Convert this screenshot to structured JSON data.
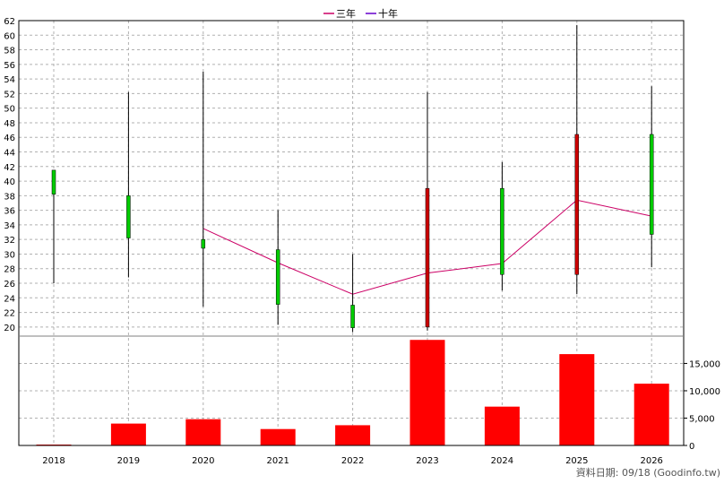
{
  "chart_data": {
    "type": "candlestick+line+bar",
    "categories": [
      "2018",
      "2019",
      "2020",
      "2021",
      "2022",
      "2023",
      "2024",
      "2025",
      "2026"
    ],
    "price_axis": {
      "min": 19,
      "max": 62,
      "ticks": [
        20,
        22,
        24,
        26,
        28,
        30,
        32,
        34,
        36,
        38,
        40,
        42,
        44,
        46,
        48,
        50,
        52,
        54,
        56,
        58,
        60,
        62
      ]
    },
    "candles": [
      {
        "year": "2018",
        "open": 38.2,
        "close": 41.5,
        "high": 41.5,
        "low": 26.0,
        "color": "#00cc00"
      },
      {
        "year": "2019",
        "open": 32.2,
        "close": 38.0,
        "high": 52.2,
        "low": 26.8,
        "color": "#00cc00"
      },
      {
        "year": "2020",
        "open": 30.8,
        "close": 32.0,
        "high": 55.0,
        "low": 22.8,
        "color": "#00cc00"
      },
      {
        "year": "2021",
        "open": 23.1,
        "close": 30.6,
        "high": 36.0,
        "low": 20.3,
        "color": "#00cc00"
      },
      {
        "year": "2022",
        "open": 19.9,
        "close": 23.0,
        "high": 30.0,
        "low": 19.3,
        "color": "#00cc00"
      },
      {
        "year": "2023",
        "open": 20.0,
        "close": 39.0,
        "high": 52.2,
        "low": 19.5,
        "color": "#cc0000"
      },
      {
        "year": "2024",
        "open": 27.2,
        "close": 39.0,
        "high": 42.6,
        "low": 25.0,
        "color": "#00cc00"
      },
      {
        "year": "2025",
        "open": 27.2,
        "close": 46.4,
        "high": 61.4,
        "low": 24.5,
        "color": "#cc0000"
      },
      {
        "year": "2026",
        "open": 32.7,
        "close": 46.4,
        "high": 53.0,
        "low": 28.2,
        "color": "#00cc00"
      }
    ],
    "series": [
      {
        "name": "三年",
        "color": "#cc0066",
        "values": [
          null,
          null,
          33.5,
          28.8,
          24.5,
          27.4,
          28.7,
          37.4,
          35.2
        ]
      },
      {
        "name": "十年",
        "color": "#6600cc",
        "values": [
          null,
          null,
          null,
          null,
          null,
          null,
          null,
          null,
          null
        ]
      }
    ],
    "volume": {
      "values": [
        0,
        4000,
        4800,
        3000,
        3700,
        19300,
        7100,
        16700,
        11300
      ],
      "color": "#ff0000",
      "max": 19500,
      "ticks": [
        0,
        5000,
        10000,
        15000
      ],
      "tick_labels": [
        "0",
        "5,000",
        "10,000",
        "15,000"
      ]
    },
    "grid": true,
    "legend_position": "top-center"
  },
  "footer": {
    "text": "資料日期: 09/18  (Goodinfo.tw)"
  }
}
